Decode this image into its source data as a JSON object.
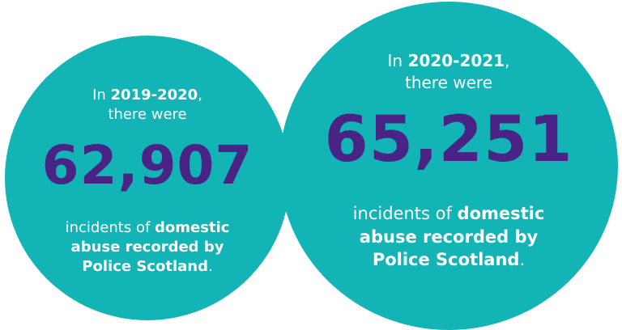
{
  "left_stat": {
    "intro_prefix": "In ",
    "period": "2019-2020",
    "intro_suffix": ",",
    "intro_line2": "there were",
    "count": "62,907",
    "desc_line1_prefix": "incidents of ",
    "desc_line1_bold": "domestic",
    "desc_line2": "abuse recorded by",
    "desc_line3_bold": "Police Scotland",
    "desc_line3_suffix": "."
  },
  "right_stat": {
    "intro_prefix": "In ",
    "period": "2020-2021",
    "intro_suffix": ",",
    "intro_line2": "there were",
    "count": "65,251",
    "desc_line1_prefix": "incidents of ",
    "desc_line1_bold": "domestic",
    "desc_line2": "abuse recorded by",
    "desc_line3_bold": "Police Scotland",
    "desc_line3_suffix": "."
  },
  "colors": {
    "circle": "#12b4b5",
    "number": "#4a2387",
    "text": "#ffffff",
    "background": "#ffffff"
  }
}
